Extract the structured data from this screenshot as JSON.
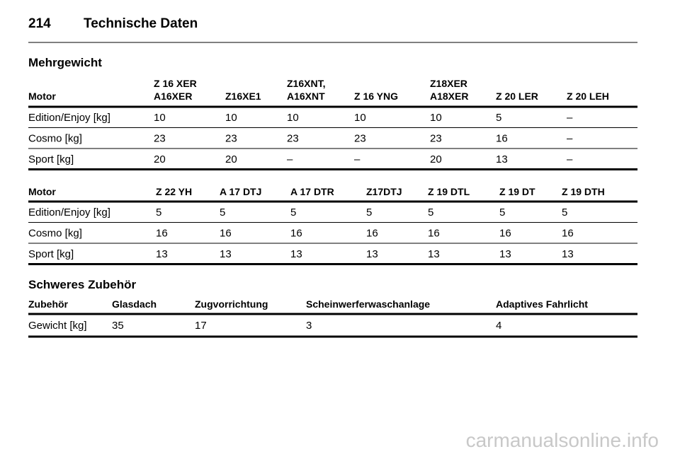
{
  "header": {
    "page": "214",
    "title": "Technische Daten"
  },
  "sections": [
    {
      "title": "Mehrgewicht",
      "tables": [
        {
          "header": [
            [
              "Motor"
            ],
            [
              "Z 16 XER",
              "A16XER"
            ],
            [
              "Z16XE1"
            ],
            [
              "Z16XNT,",
              "A16XNT"
            ],
            [
              "Z 16 YNG"
            ],
            [
              "Z18XER",
              "A18XER"
            ],
            [
              "Z 20 LER"
            ],
            [
              "Z 20 LEH"
            ]
          ],
          "rows": [
            [
              "Edition/Enjoy [kg]",
              "10",
              "10",
              "10",
              "10",
              "10",
              "5",
              "–"
            ],
            [
              "Cosmo [kg]",
              "23",
              "23",
              "23",
              "23",
              "23",
              "16",
              "–"
            ],
            [
              "Sport [kg]",
              "20",
              "20",
              "–",
              "–",
              "20",
              "13",
              "–"
            ]
          ]
        },
        {
          "header": [
            [
              "Motor"
            ],
            [
              "Z 22 YH"
            ],
            [
              "A 17 DTJ"
            ],
            [
              "A 17 DTR"
            ],
            [
              "Z17DTJ"
            ],
            [
              "Z 19 DTL"
            ],
            [
              "Z 19 DT"
            ],
            [
              "Z 19 DTH"
            ]
          ],
          "rows": [
            [
              "Edition/Enjoy [kg]",
              "5",
              "5",
              "5",
              "5",
              "5",
              "5",
              "5"
            ],
            [
              "Cosmo [kg]",
              "16",
              "16",
              "16",
              "16",
              "16",
              "16",
              "16"
            ],
            [
              "Sport [kg]",
              "13",
              "13",
              "13",
              "13",
              "13",
              "13",
              "13"
            ]
          ]
        }
      ]
    },
    {
      "title": "Schweres Zubehör",
      "tables": [
        {
          "header": [
            [
              "Zubehör"
            ],
            [
              "Glasdach"
            ],
            [
              "Zugvorrichtung"
            ],
            [
              "Scheinwerferwaschanlage"
            ],
            [
              "Adaptives Fahrlicht"
            ]
          ],
          "rows": [
            [
              "Gewicht [kg]",
              "35",
              "17",
              "3",
              "4"
            ]
          ]
        }
      ]
    }
  ],
  "watermark": "carmanualsonline.info"
}
